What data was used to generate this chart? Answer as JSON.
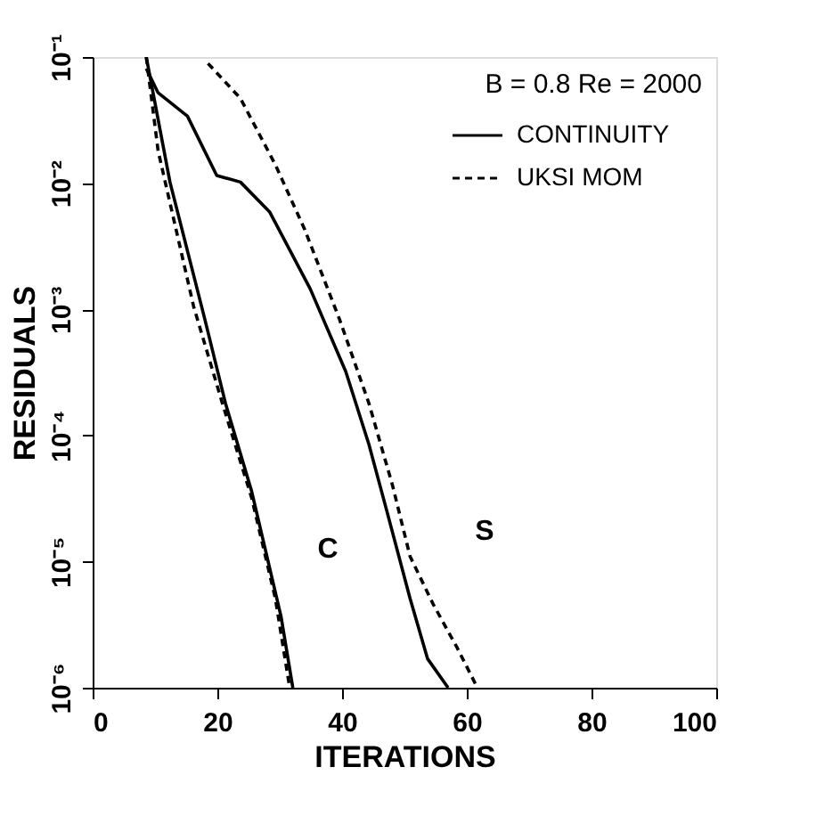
{
  "chart_data": {
    "type": "line",
    "xlabel": "ITERATIONS",
    "ylabel": "RESIDUALS",
    "log": "y",
    "xlim": [
      0,
      100
    ],
    "xticks": [
      0,
      20,
      40,
      60,
      80,
      100
    ],
    "ylim": [
      1e-06,
      0.1
    ],
    "yticks": [
      {
        "value": 1e-06,
        "label": "10⁻⁶"
      },
      {
        "value": 1e-05,
        "label": "10⁻⁵"
      },
      {
        "value": 0.0001,
        "label": "10⁻⁴"
      },
      {
        "value": 0.001,
        "label": "10⁻³"
      },
      {
        "value": 0.01,
        "label": "10⁻²"
      },
      {
        "value": 0.1,
        "label": "10⁻¹"
      }
    ],
    "grid": false,
    "legend": "top right",
    "annotations": [
      "B =  0.8  Re = 2000",
      "C",
      "S"
    ],
    "series": [
      {
        "name": "CONTINUITY",
        "color": "#000000",
        "line_style": "solid",
        "x": [
          8.6,
          12.4,
          18,
          21.3,
          25.5,
          30.2,
          32.1
        ],
        "values": [
          0.1,
          0.0102,
          0.00083,
          0.00018,
          3.6e-05,
          3.7e-06,
          1e-06
        ]
      },
      {
        "name": "UKSI MOM",
        "color": "#000000",
        "line_style": "dashed",
        "x": [
          8.6,
          10.5,
          16.2,
          20.8,
          25.5,
          29.3,
          31.6
        ],
        "values": [
          0.1,
          0.018,
          0.00105,
          0.00018,
          3.2e-05,
          5.1e-06,
          1e-06
        ]
      },
      {
        "color": "#000000",
        "line_style": "solid",
        "x": [
          8.6,
          10.5,
          15.2,
          19.9,
          23.7,
          28.4,
          34.9,
          40.6,
          44.3,
          47.1,
          50.9,
          53.7,
          57
        ],
        "values": [
          0.081,
          0.052,
          0.034,
          0.0115,
          0.0102,
          0.0059,
          0.00145,
          0.00032,
          8.5e-05,
          2.6e-05,
          5.1e-06,
          1.7e-06,
          1e-06
        ]
      },
      {
        "color": "#000000",
        "line_style": "dashed",
        "x": [
          18.5,
          23.7,
          29.3,
          34,
          39.6,
          44.3,
          48.1,
          50.9,
          54.6,
          58.4,
          61.7
        ],
        "values": [
          0.089,
          0.047,
          0.014,
          0.0043,
          0.00083,
          0.00018,
          4e-05,
          1.1e-05,
          4.6e-06,
          2.1e-06,
          1e-06
        ]
      }
    ]
  }
}
